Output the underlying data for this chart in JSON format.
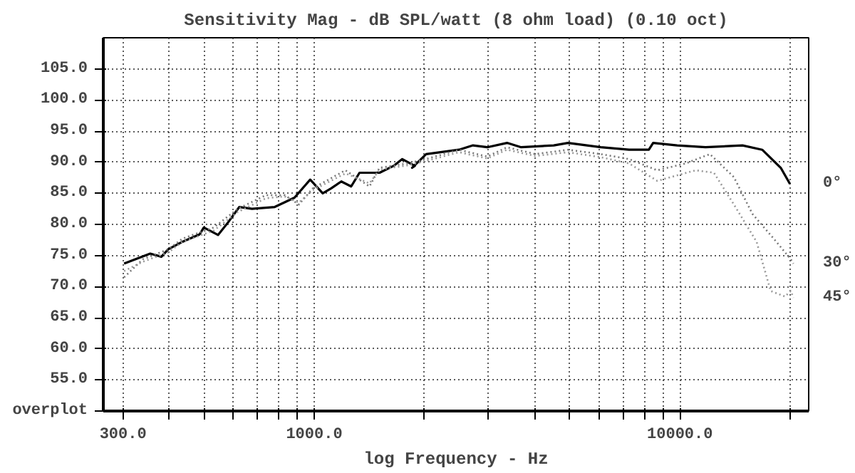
{
  "chart_data": {
    "type": "line",
    "title": "Sensitivity Mag - dB SPL/watt (8 ohm load) (0.10 oct)",
    "xlabel": "log Frequency - Hz",
    "log": "x",
    "grid": true,
    "legend": false,
    "xlim": [
      265,
      22500
    ],
    "ylim": [
      50,
      110
    ],
    "xticks": [
      {
        "value": 300,
        "label": "300.0"
      },
      {
        "value": 400,
        "label": null
      },
      {
        "value": 500,
        "label": null
      },
      {
        "value": 600,
        "label": null
      },
      {
        "value": 700,
        "label": null
      },
      {
        "value": 800,
        "label": null
      },
      {
        "value": 900,
        "label": null
      },
      {
        "value": 1000,
        "label": "1000.0"
      },
      {
        "value": 2000,
        "label": null
      },
      {
        "value": 3000,
        "label": null
      },
      {
        "value": 4000,
        "label": null
      },
      {
        "value": 5000,
        "label": null
      },
      {
        "value": 6000,
        "label": null
      },
      {
        "value": 7000,
        "label": null
      },
      {
        "value": 8000,
        "label": null
      },
      {
        "value": 9000,
        "label": null
      },
      {
        "value": 10000,
        "label": "10000.0"
      },
      {
        "value": 20000,
        "label": null
      }
    ],
    "yticks": [
      {
        "value": 55,
        "label": "55.0"
      },
      {
        "value": 60,
        "label": "60.0"
      },
      {
        "value": 65,
        "label": "65.0"
      },
      {
        "value": 70,
        "label": "70.0"
      },
      {
        "value": 75,
        "label": "75.0"
      },
      {
        "value": 80,
        "label": "80.0"
      },
      {
        "value": 85,
        "label": "85.0"
      },
      {
        "value": 90,
        "label": "90.0"
      },
      {
        "value": 95,
        "label": "95.0"
      },
      {
        "value": 100,
        "label": "100.0"
      },
      {
        "value": 105,
        "label": "105.0"
      }
    ],
    "annotations": [
      "overplot"
    ],
    "series": [
      {
        "name": "0°",
        "color": "#000000",
        "line_style": "solid",
        "x": [
          302,
          356,
          382,
          399,
          436,
          486,
          499,
          546,
          581,
          624,
          676,
          780,
          883,
          975,
          1055,
          1113,
          1186,
          1262,
          1330,
          1509,
          1648,
          1741,
          1884,
          1852,
          2023,
          2488,
          2718,
          2972,
          3367,
          3681,
          4519,
          4942,
          6073,
          7261,
          8224,
          8449,
          9830,
          11750,
          14830,
          16790,
          18870,
          20000
        ],
        "values": [
          73.7,
          75.3,
          74.8,
          76,
          77.2,
          78.4,
          79.5,
          78.3,
          80.3,
          82.8,
          82.5,
          82.8,
          84.3,
          87.2,
          85,
          85.8,
          86.9,
          86.1,
          88.3,
          88.3,
          89.4,
          90.5,
          89.4,
          89.1,
          91.3,
          92,
          92.7,
          92.4,
          93.1,
          92.4,
          92.7,
          93.1,
          92.4,
          92,
          92,
          93.1,
          92.7,
          92.4,
          92.7,
          92,
          89.1,
          86.5
        ]
      },
      {
        "name": "30°",
        "color": "#777777",
        "line_style": "dotted",
        "x": [
          302,
          340,
          399,
          436,
          531,
          618,
          738,
          830,
          908,
          991,
          1217,
          1416,
          1509,
          1803,
          2023,
          2488,
          2972,
          3367,
          4025,
          4942,
          6073,
          7261,
          8670,
          10370,
          12080,
          14050,
          15780,
          18360,
          20090,
          20440
        ],
        "values": [
          71.5,
          74.4,
          76,
          77.7,
          79.5,
          82.5,
          84.7,
          84.7,
          83.2,
          85.8,
          88.7,
          86.1,
          89.1,
          89.8,
          90.5,
          92,
          90.9,
          92.4,
          91.3,
          92,
          91.3,
          90.5,
          88.7,
          89.8,
          91.3,
          87.6,
          81.7,
          77.2,
          74.4,
          73.7
        ]
      },
      {
        "name": "45°",
        "color": "#999999",
        "line_style": "dotted",
        "x": [
          302,
          340,
          399,
          436,
          531,
          618,
          738,
          830,
          908,
          991,
          1217,
          1416,
          1509,
          1803,
          2023,
          2488,
          2972,
          3367,
          4025,
          4942,
          6073,
          7261,
          8670,
          11040,
          12390,
          14050,
          16210,
          17710,
          19380,
          20090,
          20440
        ],
        "values": [
          72.5,
          74,
          75.5,
          77.2,
          79,
          82,
          84.2,
          84.5,
          83.5,
          85.5,
          88.2,
          86.6,
          88.8,
          89.5,
          90.2,
          91.6,
          90.6,
          92,
          91,
          91.6,
          90.8,
          89.8,
          87,
          88.7,
          88.3,
          83.2,
          77.2,
          69.3,
          68.4,
          69.3,
          68.2
        ]
      }
    ]
  }
}
